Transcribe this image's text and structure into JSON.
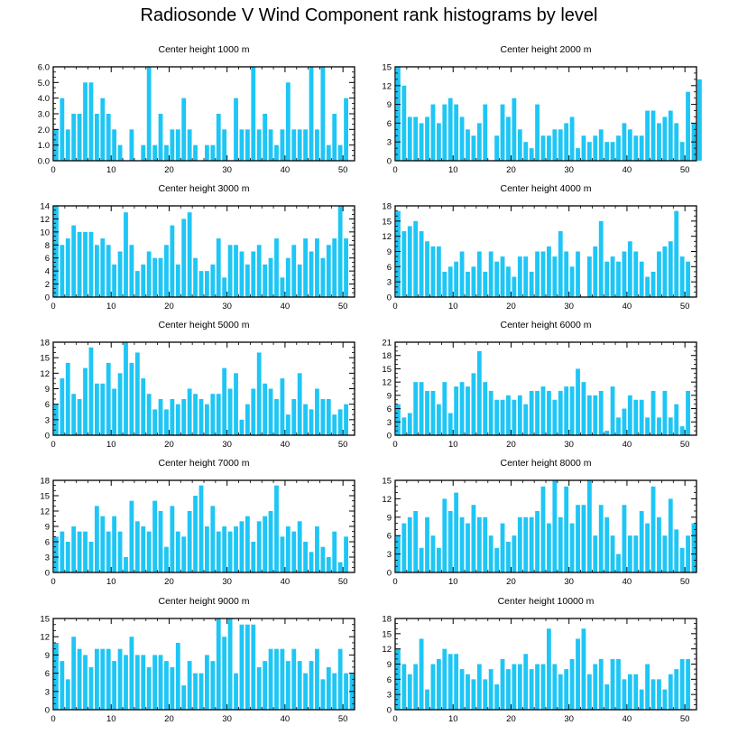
{
  "title": "Radiosonde V Wind Component rank histograms by level",
  "bar_color": "#1ec6f5",
  "chart_data": [
    {
      "type": "bar",
      "title": "Center height 1000 m",
      "xlim": [
        0,
        52
      ],
      "xticks": [
        0,
        10,
        20,
        30,
        40,
        50
      ],
      "ylim": [
        0,
        6
      ],
      "yticks": [
        0,
        1,
        2,
        3,
        4,
        5,
        6
      ],
      "ytick_labels": [
        "0.0",
        "1.0",
        "2.0",
        "3.0",
        "4.0",
        "5.0",
        "6.0"
      ],
      "values": [
        2,
        4,
        2,
        3,
        3,
        5,
        5,
        3,
        4,
        3,
        2,
        1,
        0,
        2,
        0,
        1,
        6,
        1,
        3,
        1,
        2,
        2,
        4,
        2,
        1,
        0,
        1,
        1,
        3,
        2,
        0,
        4,
        2,
        2,
        6,
        2,
        3,
        2,
        1,
        2,
        5,
        2,
        2,
        2,
        6,
        2,
        6,
        1,
        3,
        1,
        4
      ]
    },
    {
      "type": "bar",
      "title": "Center height 2000 m",
      "xlim": [
        0,
        52
      ],
      "xticks": [
        0,
        10,
        20,
        30,
        40,
        50
      ],
      "ylim": [
        0,
        15
      ],
      "yticks": [
        0,
        3,
        6,
        9,
        12,
        15
      ],
      "ytick_labels": [
        "0",
        "3",
        "6",
        "9",
        "12",
        "15"
      ],
      "values": [
        15,
        12,
        7,
        7,
        6,
        7,
        9,
        6,
        9,
        10,
        9,
        7,
        5,
        4,
        6,
        9,
        0,
        4,
        9,
        7,
        10,
        5,
        3,
        2,
        9,
        4,
        4,
        5,
        5,
        6,
        7,
        2,
        4,
        3,
        4,
        5,
        3,
        3,
        4,
        6,
        5,
        4,
        4,
        8,
        8,
        6,
        7,
        8,
        6,
        3,
        11,
        6,
        13
      ]
    },
    {
      "type": "bar",
      "title": "Center height 3000 m",
      "xlim": [
        0,
        52
      ],
      "xticks": [
        0,
        10,
        20,
        30,
        40,
        50
      ],
      "ylim": [
        0,
        14
      ],
      "yticks": [
        0,
        2,
        4,
        6,
        8,
        10,
        12,
        14
      ],
      "ytick_labels": [
        "0",
        "2",
        "4",
        "6",
        "8",
        "10",
        "12",
        "14"
      ],
      "values": [
        14,
        8,
        9,
        11,
        10,
        10,
        10,
        8,
        9,
        8,
        5,
        7,
        13,
        8,
        4,
        5,
        7,
        6,
        6,
        8,
        11,
        5,
        12,
        13,
        6,
        4,
        4,
        5,
        9,
        3,
        8,
        8,
        7,
        5,
        7,
        8,
        5,
        6,
        9,
        3,
        6,
        8,
        5,
        9,
        7,
        9,
        6,
        8,
        9,
        14,
        9
      ]
    },
    {
      "type": "bar",
      "title": "Center height 4000 m",
      "xlim": [
        0,
        52
      ],
      "xticks": [
        0,
        10,
        20,
        30,
        40,
        50
      ],
      "ylim": [
        0,
        18
      ],
      "yticks": [
        0,
        3,
        6,
        9,
        12,
        15,
        18
      ],
      "ytick_labels": [
        "0",
        "3",
        "6",
        "9",
        "12",
        "15",
        "18"
      ],
      "values": [
        17,
        13,
        14,
        15,
        13,
        11,
        10,
        10,
        5,
        6,
        7,
        9,
        5,
        6,
        9,
        5,
        9,
        7,
        8,
        6,
        4,
        8,
        8,
        5,
        9,
        9,
        10,
        8,
        13,
        9,
        6,
        9,
        0,
        8,
        10,
        15,
        7,
        8,
        7,
        9,
        11,
        9,
        7,
        4,
        5,
        9,
        10,
        11,
        17,
        8,
        7
      ]
    },
    {
      "type": "bar",
      "title": "Center height 5000 m",
      "xlim": [
        0,
        52
      ],
      "xticks": [
        0,
        10,
        20,
        30,
        40,
        50
      ],
      "ylim": [
        0,
        18
      ],
      "yticks": [
        0,
        3,
        6,
        9,
        12,
        15,
        18
      ],
      "ytick_labels": [
        "0",
        "3",
        "6",
        "9",
        "12",
        "15",
        "18"
      ],
      "values": [
        6,
        11,
        14,
        8,
        7,
        13,
        17,
        10,
        10,
        14,
        9,
        12,
        18,
        14,
        16,
        11,
        8,
        5,
        7,
        5,
        7,
        6,
        7,
        9,
        8,
        7,
        6,
        8,
        8,
        13,
        9,
        12,
        3,
        6,
        9,
        16,
        10,
        9,
        7,
        11,
        4,
        7,
        12,
        6,
        5,
        9,
        7,
        7,
        4,
        5,
        6
      ]
    },
    {
      "type": "bar",
      "title": "Center height 6000 m",
      "xlim": [
        0,
        52
      ],
      "xticks": [
        0,
        10,
        20,
        30,
        40,
        50
      ],
      "ylim": [
        0,
        21
      ],
      "yticks": [
        0,
        3,
        6,
        9,
        12,
        15,
        18,
        21
      ],
      "ytick_labels": [
        "0",
        "3",
        "6",
        "9",
        "12",
        "15",
        "18",
        "21"
      ],
      "values": [
        7,
        4,
        5,
        12,
        12,
        10,
        10,
        7,
        12,
        5,
        11,
        12,
        11,
        14,
        19,
        12,
        10,
        8,
        8,
        9,
        8,
        9,
        7,
        10,
        10,
        11,
        10,
        8,
        10,
        11,
        11,
        15,
        12,
        9,
        9,
        10,
        1,
        11,
        4,
        6,
        9,
        8,
        8,
        4,
        10,
        4,
        10,
        4,
        7,
        2,
        10
      ]
    },
    {
      "type": "bar",
      "title": "Center height 7000 m",
      "xlim": [
        0,
        52
      ],
      "xticks": [
        0,
        10,
        20,
        30,
        40,
        50
      ],
      "ylim": [
        0,
        18
      ],
      "yticks": [
        0,
        3,
        6,
        9,
        12,
        15,
        18
      ],
      "ytick_labels": [
        "0",
        "3",
        "6",
        "9",
        "12",
        "15",
        "18"
      ],
      "values": [
        7,
        8,
        6,
        9,
        8,
        8,
        6,
        13,
        11,
        8,
        11,
        8,
        3,
        14,
        10,
        9,
        8,
        14,
        12,
        5,
        13,
        8,
        7,
        12,
        15,
        17,
        9,
        13,
        8,
        9,
        8,
        9,
        10,
        11,
        6,
        10,
        11,
        12,
        17,
        7,
        9,
        8,
        10,
        6,
        4,
        9,
        5,
        3,
        8,
        2,
        7
      ]
    },
    {
      "type": "bar",
      "title": "Center height 8000 m",
      "xlim": [
        0,
        52
      ],
      "xticks": [
        0,
        10,
        20,
        30,
        40,
        50
      ],
      "ylim": [
        0,
        15
      ],
      "yticks": [
        0,
        3,
        6,
        9,
        12,
        15
      ],
      "ytick_labels": [
        "0",
        "3",
        "6",
        "9",
        "12",
        "15"
      ],
      "values": [
        6,
        8,
        9,
        10,
        4,
        9,
        6,
        4,
        12,
        10,
        13,
        9,
        8,
        11,
        9,
        9,
        6,
        4,
        8,
        5,
        6,
        9,
        9,
        9,
        10,
        14,
        8,
        15,
        9,
        14,
        8,
        11,
        11,
        15,
        6,
        11,
        9,
        6,
        3,
        11,
        6,
        6,
        10,
        8,
        14,
        9,
        6,
        12,
        7,
        4,
        6,
        8
      ]
    },
    {
      "type": "bar",
      "title": "Center height 9000 m",
      "xlim": [
        0,
        52
      ],
      "xticks": [
        0,
        10,
        20,
        30,
        40,
        50
      ],
      "ylim": [
        0,
        15
      ],
      "yticks": [
        0,
        3,
        6,
        9,
        12,
        15
      ],
      "ytick_labels": [
        "0",
        "3",
        "6",
        "9",
        "12",
        "15"
      ],
      "values": [
        11,
        8,
        5,
        12,
        10,
        9,
        7,
        10,
        10,
        10,
        8,
        10,
        9,
        12,
        9,
        9,
        7,
        9,
        9,
        8,
        7,
        11,
        4,
        8,
        6,
        6,
        9,
        8,
        15,
        12,
        15,
        6,
        14,
        14,
        14,
        7,
        8,
        10,
        10,
        10,
        8,
        10,
        8,
        6,
        8,
        10,
        5,
        7,
        6,
        10,
        6,
        6
      ]
    },
    {
      "type": "bar",
      "title": "Center height 10000 m",
      "xlim": [
        0,
        52
      ],
      "xticks": [
        0,
        10,
        20,
        30,
        40,
        50
      ],
      "ylim": [
        0,
        18
      ],
      "yticks": [
        0,
        3,
        6,
        9,
        12,
        15,
        18
      ],
      "ytick_labels": [
        "0",
        "3",
        "6",
        "9",
        "12",
        "15",
        "18"
      ],
      "values": [
        12,
        9,
        7,
        9,
        14,
        4,
        9,
        10,
        12,
        11,
        11,
        8,
        7,
        6,
        9,
        6,
        8,
        5,
        10,
        8,
        9,
        9,
        11,
        8,
        9,
        9,
        16,
        9,
        7,
        8,
        10,
        14,
        16,
        7,
        9,
        10,
        5,
        10,
        10,
        6,
        7,
        7,
        4,
        9,
        6,
        6,
        4,
        7,
        8,
        10,
        10
      ]
    }
  ]
}
